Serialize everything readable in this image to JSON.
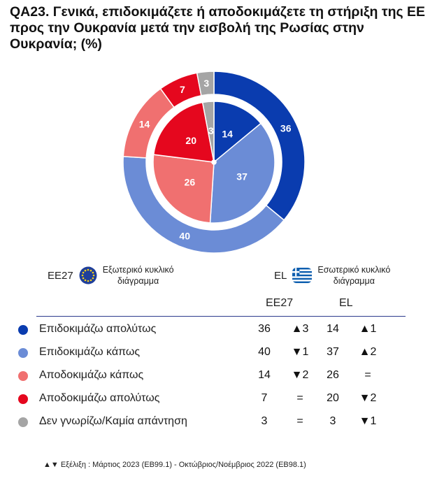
{
  "title": "QA23. Γενικά, επιδοκιμάζετε ή αποδοκιμάζετε τη στήριξη της ΕΕ προς την Ουκρανία μετά την εισβολή της Ρωσίας στην Ουκρανία; (%)",
  "legend": {
    "outer": {
      "code": "EE27",
      "text_line1": "Εξωτερικό κυκλικό",
      "text_line2": "διάγραμμα"
    },
    "inner": {
      "code": "EL",
      "text_line1": "Εσωτερικό κυκλικό",
      "text_line2": "διάγραμμα"
    }
  },
  "table_headers": {
    "eu": "EE27",
    "el": "EL"
  },
  "colors": [
    "#0a3caf",
    "#6b8cd6",
    "#f07070",
    "#e5071e",
    "#a5a5a5"
  ],
  "chart_data": {
    "type": "pie",
    "categories": [
      "Επιδοκιμάζω απολύτως",
      "Επιδοκιμάζω κάπως",
      "Αποδοκιμάζω κάπως",
      "Αποδοκιμάζω απολύτως",
      "Δεν γνωρίζω/Καμία απάντηση"
    ],
    "series": [
      {
        "name": "EE27",
        "values": [
          36,
          40,
          14,
          7,
          3
        ]
      },
      {
        "name": "EL",
        "values": [
          14,
          37,
          26,
          20,
          3
        ]
      }
    ]
  },
  "rows": [
    {
      "label": "Επιδοκιμάζω απολύτως",
      "eu_value": "36",
      "eu_change": "▲3",
      "el_value": "14",
      "el_change": "▲1"
    },
    {
      "label": "Επιδοκιμάζω κάπως",
      "eu_value": "40",
      "eu_change": "▼1",
      "el_value": "37",
      "el_change": "▲2"
    },
    {
      "label": "Αποδοκιμάζω κάπως",
      "eu_value": "14",
      "eu_change": "▼2",
      "el_value": "26",
      "el_change": "="
    },
    {
      "label": "Αποδοκιμάζω απολύτως",
      "eu_value": "7",
      "eu_change": "=",
      "el_value": "20",
      "el_change": "▼2"
    },
    {
      "label": "Δεν γνωρίζω/Καμία απάντηση",
      "eu_value": "3",
      "eu_change": "=",
      "el_value": "3",
      "el_change": "▼1"
    }
  ],
  "footnote": "▲▼ Εξέλιξη : Μάρτιος 2023 (EB99.1) - Οκτώβριος/Νοέμβριος 2022 (EB98.1)"
}
